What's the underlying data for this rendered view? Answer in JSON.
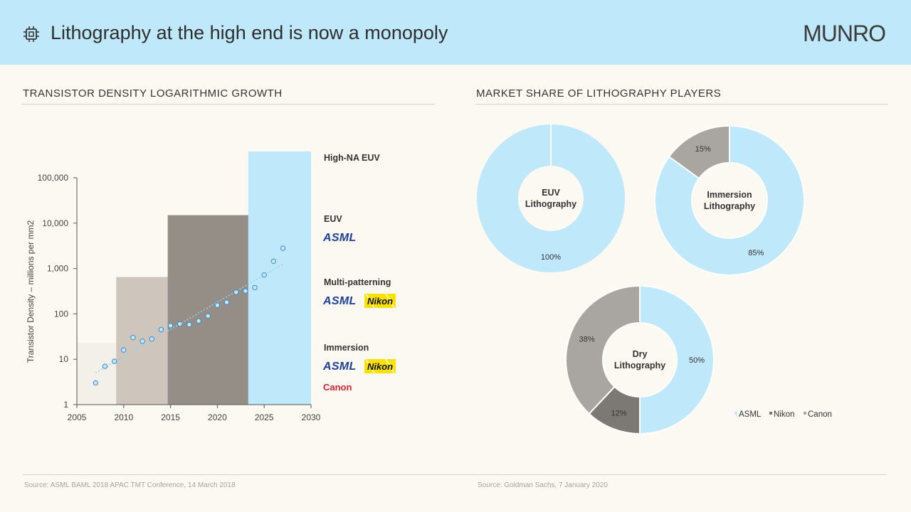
{
  "header": {
    "title": "Lithography at the high end is now a monopoly",
    "brand": "MUNRO",
    "icon": "chip-icon"
  },
  "left": {
    "section_title": "TRANSISTOR  DENSITY  LOGARITHMIC  GROWTH",
    "source": "Source: ASML BAML 2018 APAC TMT  Conference, 14 March 2018"
  },
  "right": {
    "section_title": "MARKET SHARE OF LITHOGRAPHY  PLAYERS",
    "source": "Source: Goldman Sachs, 7 January 2020"
  },
  "logos": {
    "asml": "ASML",
    "nikon": "Nikon",
    "canon": "Canon"
  },
  "chart_data": [
    {
      "type": "scatter",
      "title": "TRANSISTOR  DENSITY  LOGARITHMIC  GROWTH",
      "ylabel": "Transistor Density – millions per mm2",
      "xlabel": "",
      "xlim": [
        2005,
        2030
      ],
      "ylim_log10": [
        0,
        5
      ],
      "x_ticks": [
        "2005",
        "2010",
        "2015",
        "2020",
        "2025",
        "2030"
      ],
      "y_ticks": [
        "1",
        "10",
        "100",
        "1,000",
        "10,000",
        "100,000"
      ],
      "points": [
        {
          "x": 2007,
          "y": 3
        },
        {
          "x": 2008,
          "y": 7
        },
        {
          "x": 2009,
          "y": 9
        },
        {
          "x": 2010,
          "y": 16
        },
        {
          "x": 2011,
          "y": 30
        },
        {
          "x": 2012,
          "y": 25
        },
        {
          "x": 2013,
          "y": 28
        },
        {
          "x": 2014,
          "y": 45
        },
        {
          "x": 2015,
          "y": 55
        },
        {
          "x": 2016,
          "y": 60
        },
        {
          "x": 2017,
          "y": 58
        },
        {
          "x": 2018,
          "y": 70
        },
        {
          "x": 2019,
          "y": 90
        },
        {
          "x": 2020,
          "y": 155
        },
        {
          "x": 2021,
          "y": 180
        },
        {
          "x": 2022,
          "y": 300
        },
        {
          "x": 2023,
          "y": 320
        },
        {
          "x": 2024,
          "y": 380
        },
        {
          "x": 2025,
          "y": 720
        },
        {
          "x": 2026,
          "y": 1450
        },
        {
          "x": 2027,
          "y": 2800
        }
      ],
      "trendline": {
        "x": [
          2007,
          2027
        ],
        "y": [
          5,
          1250
        ]
      },
      "technology_bands": [
        {
          "name": "Immersion",
          "x_start": 2005,
          "x_end": 2030,
          "y_top": 23,
          "color": "#f3efe9",
          "vendors": [
            "ASML",
            "Nikon",
            "Canon"
          ]
        },
        {
          "name": "Multi-patterning",
          "x_start": 2009.2,
          "x_end": 2030,
          "y_top": 650,
          "color": "#cec6bd",
          "vendors": [
            "ASML",
            "Nikon"
          ]
        },
        {
          "name": "EUV",
          "x_start": 2014.7,
          "x_end": 2030,
          "y_top": 15000,
          "color": "#958e87",
          "vendors": [
            "ASML"
          ]
        },
        {
          "name": "High-NA  EUV",
          "x_start": 2023.3,
          "x_end": 2030,
          "y_top": 400000,
          "color": "#bfe8fb",
          "vendors": []
        }
      ]
    },
    {
      "type": "pie",
      "donut": true,
      "title": "EUV Lithography",
      "center_label": [
        "EUV",
        "Lithography"
      ],
      "slices": [
        {
          "label": "ASML",
          "value": 100,
          "display": "100%",
          "color": "#bfe8fb"
        }
      ]
    },
    {
      "type": "pie",
      "donut": true,
      "title": "Immersion Lithography",
      "center_label": [
        "Immersion",
        "Lithography"
      ],
      "slices": [
        {
          "label": "ASML",
          "value": 85,
          "display": "85%",
          "color": "#bfe8fb"
        },
        {
          "label": "Canon",
          "value": 15,
          "display": "15%",
          "color": "#a9a6a2"
        }
      ]
    },
    {
      "type": "pie",
      "donut": true,
      "title": "Dry Lithography",
      "center_label": [
        "Dry",
        "Lithography"
      ],
      "slices": [
        {
          "label": "ASML",
          "value": 50,
          "display": "50%",
          "color": "#bfe8fb"
        },
        {
          "label": "Nikon",
          "value": 12,
          "display": "12%",
          "color": "#7c7975"
        },
        {
          "label": "Canon",
          "value": 38,
          "display": "38%",
          "color": "#a9a6a2"
        }
      ],
      "legend": [
        {
          "label": "ASML",
          "color": "#bfe8fb"
        },
        {
          "label": "Nikon",
          "color": "#7c7975"
        },
        {
          "label": "Canon",
          "color": "#a9a6a2"
        }
      ]
    }
  ]
}
